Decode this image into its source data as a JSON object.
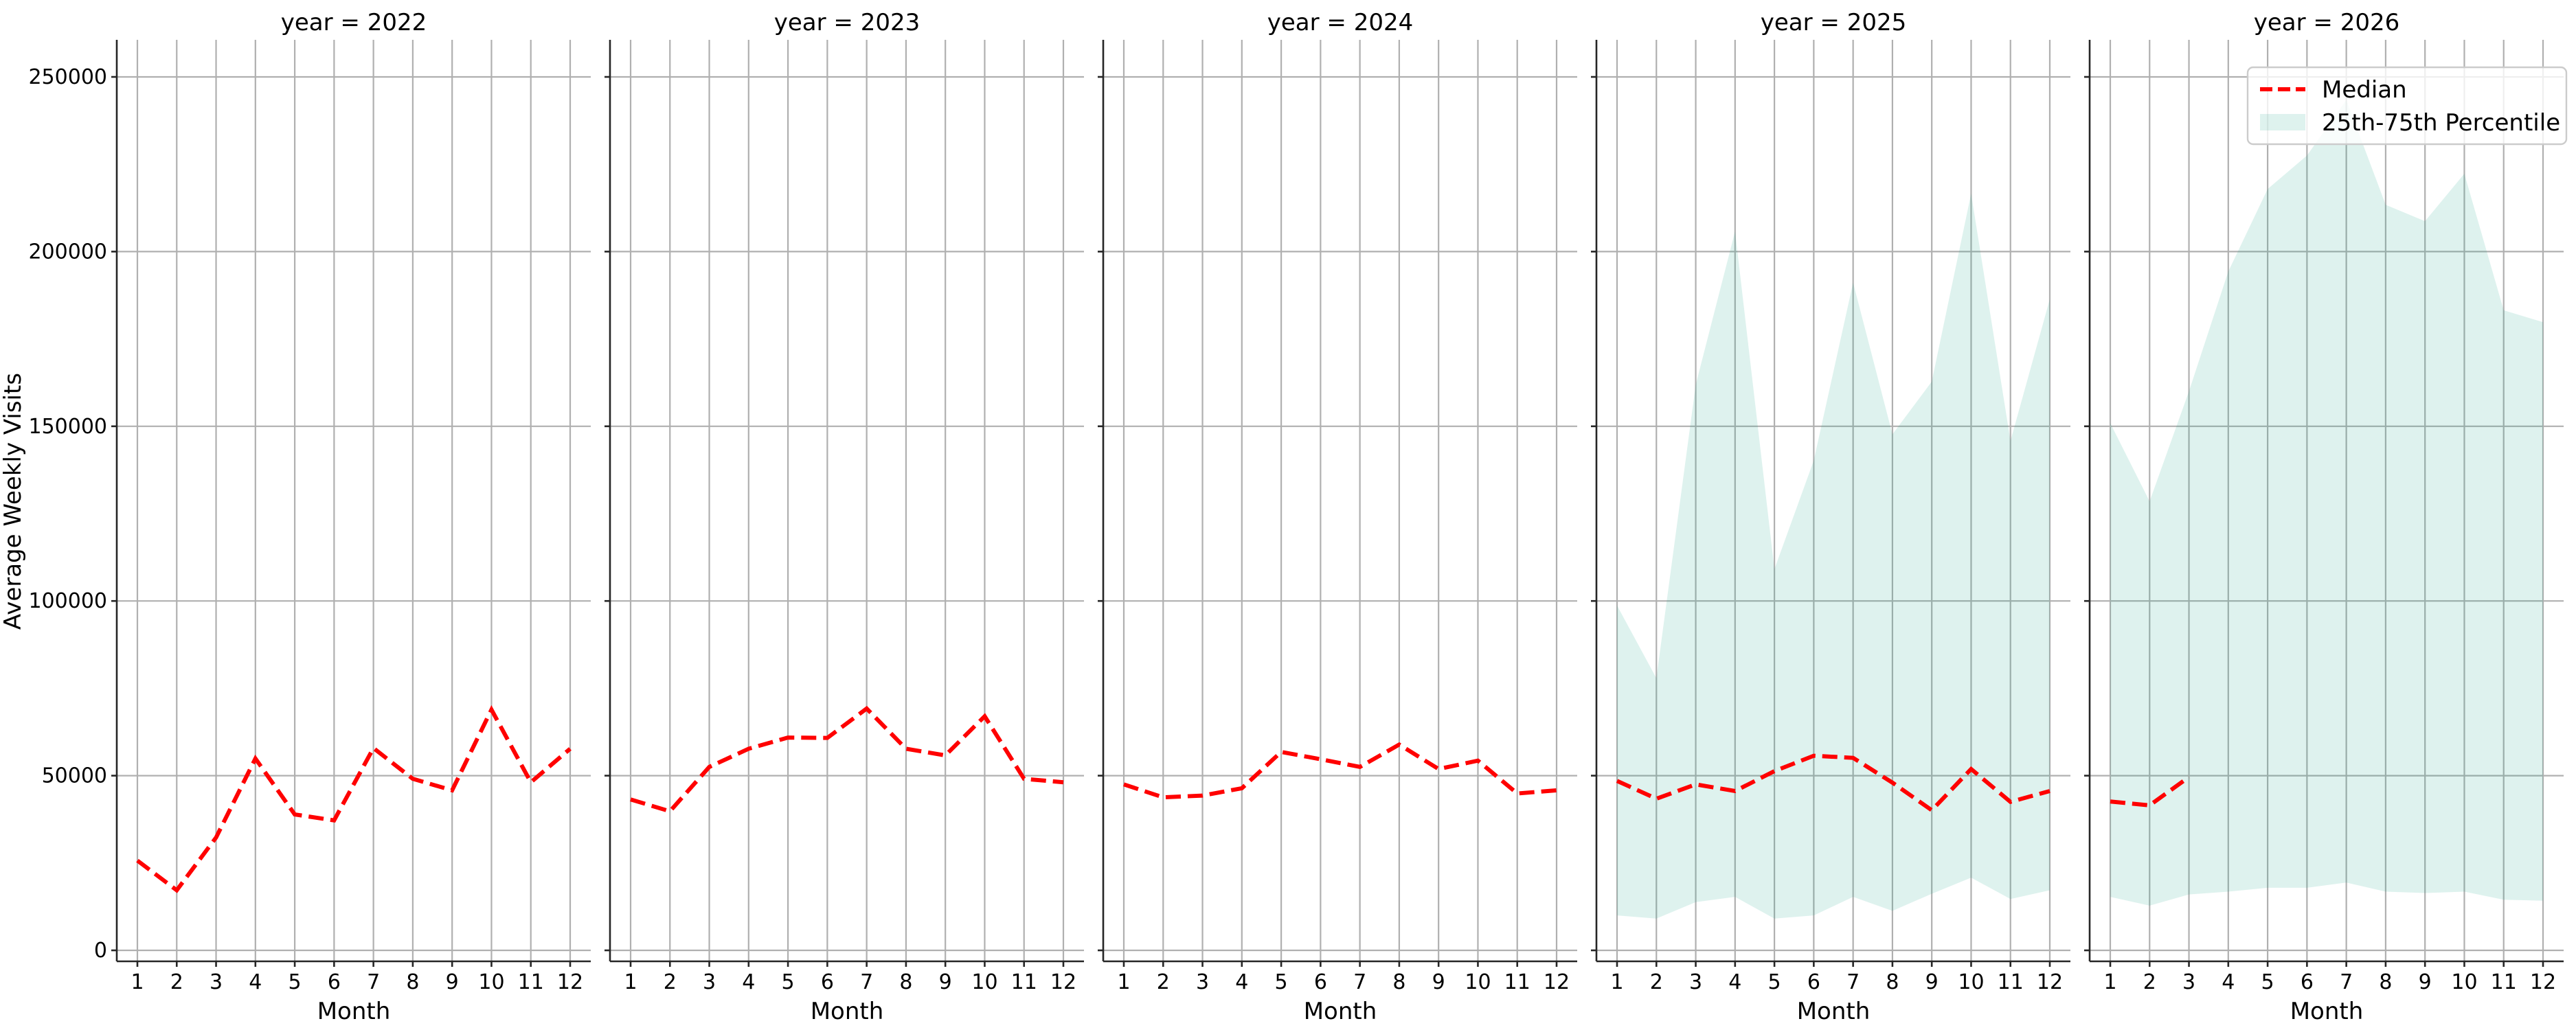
{
  "chart_data": {
    "type": "line",
    "layout": "faceted small multiples (1 row x 5 columns), shared y-axis",
    "facet_variable": "year",
    "panel_titles": [
      "year = 2022",
      "year = 2023",
      "year = 2024",
      "year = 2025",
      "year = 2026"
    ],
    "xlabel": "Month",
    "ylabel": "Average Weekly Visits",
    "x": [
      1,
      2,
      3,
      4,
      5,
      6,
      7,
      8,
      9,
      10,
      11,
      12
    ],
    "x_tick_labels": [
      "1",
      "2",
      "3",
      "4",
      "5",
      "6",
      "7",
      "8",
      "9",
      "10",
      "11",
      "12"
    ],
    "y_ticks": [
      0,
      50000,
      100000,
      150000,
      200000,
      250000
    ],
    "y_tick_labels": [
      "0",
      "50000",
      "100000",
      "150000",
      "200000",
      "250000"
    ],
    "ylim": [
      -3000,
      260000
    ],
    "grid": true,
    "legend": {
      "position": "upper right (in year = 2026 panel)",
      "entries": [
        {
          "label": "Median",
          "style": "red dashed line",
          "color": "#ff0000"
        },
        {
          "label": "25th-75th Percentile",
          "style": "shaded band",
          "color": "#16a085",
          "alpha": 0.14
        }
      ]
    },
    "panels": [
      {
        "year": 2022,
        "median": [
          25700,
          17200,
          32300,
          54900,
          38900,
          37200,
          57900,
          49100,
          45800,
          68900,
          48100,
          57700
        ],
        "p25": null,
        "p75": null
      },
      {
        "year": 2023,
        "median": [
          43200,
          39800,
          52500,
          57700,
          60900,
          60800,
          69200,
          57700,
          55800,
          67000,
          49100,
          48100
        ],
        "p25": null,
        "p75": null
      },
      {
        "year": 2024,
        "median": [
          47500,
          43800,
          44300,
          46400,
          56800,
          54700,
          52500,
          58900,
          51900,
          54300,
          44900,
          45800
        ],
        "p25": null,
        "p75": null
      },
      {
        "year": 2025,
        "median": [
          48500,
          43400,
          47500,
          45600,
          51300,
          55700,
          55100,
          48000,
          40100,
          51900,
          42500,
          45600
        ],
        "p25": [
          10000,
          9100,
          13800,
          15300,
          9100,
          10000,
          15300,
          11300,
          16200,
          20800,
          14700,
          17200
        ],
        "p75": [
          98700,
          77900,
          161900,
          205800,
          109100,
          140200,
          191100,
          147700,
          162800,
          216600,
          145800,
          186400
        ]
      },
      {
        "year": 2026,
        "median": [
          42600,
          41500,
          49600,
          null,
          null,
          null,
          null,
          null,
          null,
          null,
          null,
          null
        ],
        "p25": [
          15300,
          12800,
          16000,
          16800,
          17900,
          17900,
          19400,
          16800,
          16400,
          16800,
          14500,
          14200
        ],
        "p75": [
          150900,
          128500,
          160000,
          194300,
          217900,
          227500,
          243400,
          213400,
          208700,
          222300,
          183200,
          179800
        ]
      }
    ]
  },
  "colors": {
    "median": "#ff0000",
    "band": "#16a085",
    "grid": "#b0b0b0",
    "axis": "#262626"
  }
}
